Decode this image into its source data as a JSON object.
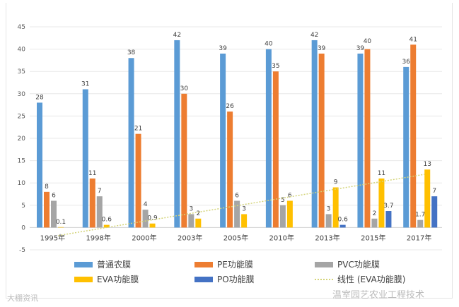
{
  "chart_data": {
    "type": "bar",
    "categories": [
      "1995年",
      "1998年",
      "2000年",
      "2003年",
      "2005年",
      "2010年",
      "2013年",
      "2015年",
      "2017年"
    ],
    "series": [
      {
        "name": "普通农膜",
        "color": "#5b9bd5",
        "values": [
          28,
          31,
          38,
          42,
          39,
          40,
          42,
          39,
          36
        ]
      },
      {
        "name": "PE功能膜",
        "color": "#ed7d31",
        "values": [
          8,
          11,
          21,
          30,
          26,
          35,
          39,
          40,
          41
        ]
      },
      {
        "name": "PVC功能膜",
        "color": "#a5a5a5",
        "values": [
          6,
          7,
          4,
          3,
          6,
          5,
          3,
          2,
          1.7
        ]
      },
      {
        "name": "EVA功能膜",
        "color": "#ffc000",
        "values": [
          0.1,
          0.6,
          0.9,
          2,
          3,
          6,
          9,
          11,
          13
        ]
      },
      {
        "name": "PO功能膜",
        "color": "#4472c4",
        "values": [
          null,
          null,
          null,
          null,
          null,
          null,
          0.6,
          3.7,
          7
        ]
      }
    ],
    "trendline": {
      "name": "线性 (EVA功能膜)",
      "type": "linear",
      "of": "EVA功能膜",
      "color": "#d4d47a"
    },
    "ylim": [
      -5,
      45
    ],
    "yticks": [
      -5,
      0,
      5,
      10,
      15,
      20,
      25,
      30,
      35,
      40,
      45
    ],
    "grid": true,
    "legend": "bottom",
    "data_labels": true
  },
  "watermarks": {
    "right": "温室园艺农业工程技术",
    "left": "大棚资讯"
  }
}
